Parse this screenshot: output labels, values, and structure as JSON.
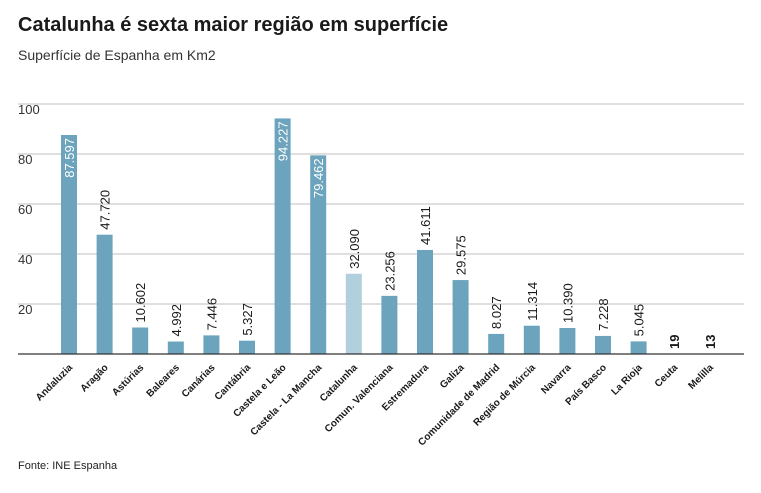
{
  "chart_data": {
    "type": "bar",
    "title": "Catalunha é sexta maior região em superfície",
    "subtitle": "Superfície de Espanha em Km2",
    "source": "Fonte: INE Espanha",
    "xlabel": "",
    "ylabel": "",
    "ylim": [
      0,
      100
    ],
    "yticks": [
      "20",
      "40",
      "60",
      "80",
      "100"
    ],
    "grid": true,
    "categories": [
      "Andaluzia",
      "Aragão",
      "Astúrias",
      "Baleares",
      "Canárias",
      "Cantábria",
      "Castela e Leão",
      "Castela - La Mancha",
      "Catalunha",
      "Comun. Valenciana",
      "Estremadura",
      "Galiza",
      "Comunidade de Madrid",
      "Região de Múrcia",
      "Navarra",
      "País Basco",
      "La Rioja",
      "Ceuta",
      "Melilla"
    ],
    "values": [
      87.597,
      47.72,
      10.602,
      4.992,
      7.446,
      5.327,
      94.227,
      79.462,
      32.09,
      23.256,
      41.611,
      29.575,
      8.027,
      11.314,
      10.39,
      7.228,
      5.045,
      0.019,
      0.013
    ],
    "labels": [
      "87.597",
      "47.720",
      "10.602",
      "4.992",
      "7.446",
      "5.327",
      "94.227",
      "79.462",
      "32.090",
      "23.256",
      "41.611",
      "29.575",
      "8.027",
      "11.314",
      "10.390",
      "7.228",
      "5.045",
      "19",
      "13"
    ],
    "highlight": "Catalunha",
    "colors": {
      "bar": "#6ba4bc",
      "highlight": "#b2cfdd",
      "grid": "#bfbfbf",
      "axis": "#333333",
      "text": "#1a1a1a"
    }
  }
}
